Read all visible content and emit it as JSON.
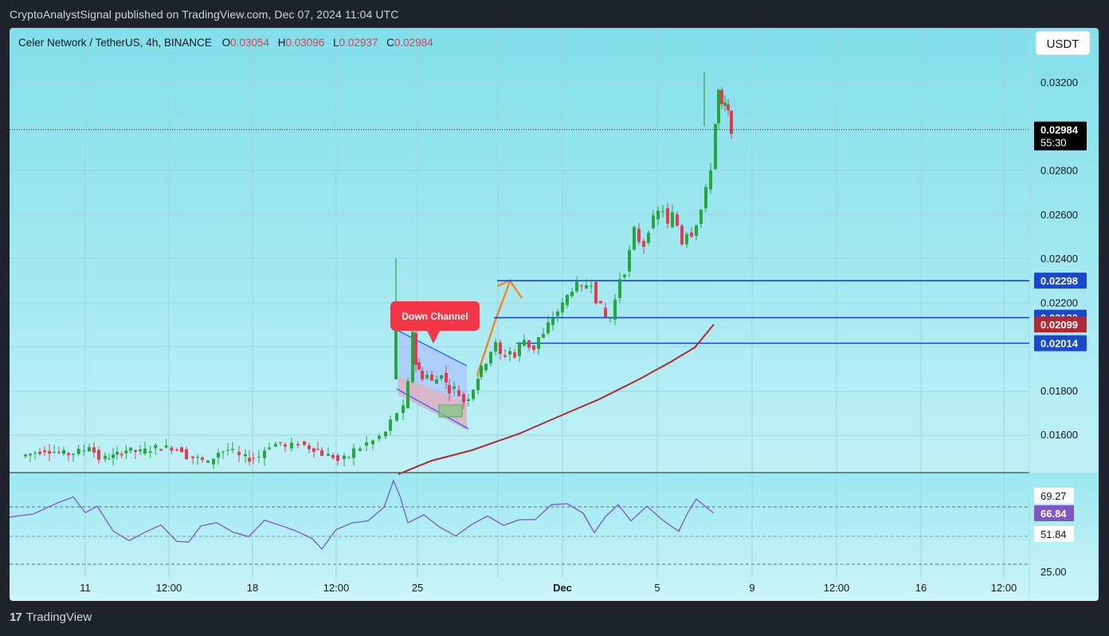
{
  "header": {
    "published": "CryptoAnalystSignal published on TradingView.com, Dec 07, 2024 11:04 UTC"
  },
  "legend": {
    "symbol": "Celer Network / TetherUS, 4h, BINANCE",
    "o_label": "O",
    "o_value": "0.03054",
    "h_label": "H",
    "h_value": "0.03096",
    "l_label": "L",
    "l_value": "0.02937",
    "c_label": "C",
    "c_value": "0.02984"
  },
  "currency_button": "USDT",
  "price_axis": {
    "ticks": [
      "0.03200",
      "0.02800",
      "0.02600",
      "0.02400",
      "0.02200",
      "0.01800",
      "0.01600"
    ],
    "current_price": "0.02984",
    "countdown": "55:30",
    "labels": [
      {
        "value": "0.02298",
        "color": "#1848cc"
      },
      {
        "value": "0.02130",
        "color": "#1848cc"
      },
      {
        "value": "0.02099",
        "color": "#b22833"
      },
      {
        "value": "0.02014",
        "color": "#1848cc"
      }
    ]
  },
  "rsi_axis": {
    "ticks": [
      "69.27",
      "51.84",
      "25.00"
    ],
    "current": "66.84",
    "current_color": "#7e57c2"
  },
  "time_axis": {
    "labels": [
      "11",
      "12:00",
      "18",
      "12:00",
      "25",
      "Dec",
      "5",
      "9",
      "12:00",
      "16",
      "12:00"
    ]
  },
  "annotation": {
    "text": "Down Channel",
    "color": "#f23645"
  },
  "colors": {
    "up": "#26a641",
    "down": "#e53950",
    "ma": "#b22833",
    "level": "#1848cc",
    "rsi": "#7e57c2"
  },
  "chart_data": {
    "type": "candlestick",
    "title": "Celer Network / TetherUS, 4h, BINANCE",
    "xlabel": "",
    "ylabel": "",
    "ylim": [
      0.015,
      0.033
    ],
    "x_ticks": [
      "11",
      "12:00",
      "18",
      "12:00",
      "25",
      "Dec",
      "5",
      "9",
      "12:00",
      "16",
      "12:00"
    ],
    "horizontal_levels": [
      0.02298,
      0.0213,
      0.02014
    ],
    "moving_average_last": 0.02099,
    "close_path": [
      [
        0,
        0.015
      ],
      [
        30,
        0.0153
      ],
      [
        60,
        0.0151
      ],
      [
        80,
        0.0153
      ],
      [
        86,
        0.0155
      ],
      [
        92,
        0.0152
      ],
      [
        100,
        0.0149
      ],
      [
        115,
        0.015
      ],
      [
        132,
        0.0153
      ],
      [
        150,
        0.0152
      ],
      [
        170,
        0.0154
      ],
      [
        190,
        0.0154
      ],
      [
        202,
        0.0153
      ],
      [
        210,
        0.015
      ],
      [
        222,
        0.0149
      ],
      [
        236,
        0.0147
      ],
      [
        248,
        0.0152
      ],
      [
        260,
        0.0153
      ],
      [
        268,
        0.0152
      ],
      [
        276,
        0.015
      ],
      [
        286,
        0.0149
      ],
      [
        300,
        0.015
      ],
      [
        306,
        0.0153
      ],
      [
        314,
        0.0155
      ],
      [
        326,
        0.0156
      ],
      [
        334,
        0.0154
      ],
      [
        342,
        0.0155
      ],
      [
        350,
        0.0156
      ],
      [
        362,
        0.0154
      ],
      [
        372,
        0.0153
      ],
      [
        380,
        0.0151
      ],
      [
        392,
        0.015
      ],
      [
        400,
        0.0148
      ],
      [
        412,
        0.015
      ],
      [
        420,
        0.0153
      ],
      [
        428,
        0.0154
      ],
      [
        436,
        0.0156
      ],
      [
        444,
        0.0157
      ],
      [
        452,
        0.0159
      ],
      [
        458,
        0.0161
      ],
      [
        466,
        0.0166
      ],
      [
        474,
        0.017
      ],
      [
        480,
        0.0172
      ],
      [
        486,
        0.0183
      ],
      [
        490,
        0.0207
      ],
      [
        494,
        0.0192
      ],
      [
        498,
        0.0189
      ],
      [
        504,
        0.0186
      ],
      [
        510,
        0.0187
      ],
      [
        516,
        0.0184
      ],
      [
        522,
        0.0185
      ],
      [
        528,
        0.0188
      ],
      [
        532,
        0.0183
      ],
      [
        538,
        0.018
      ],
      [
        544,
        0.0181
      ],
      [
        550,
        0.0178
      ],
      [
        556,
        0.0175
      ],
      [
        562,
        0.0177
      ],
      [
        568,
        0.0181
      ],
      [
        572,
        0.0186
      ],
      [
        578,
        0.019
      ],
      [
        584,
        0.0193
      ],
      [
        590,
        0.0198
      ],
      [
        596,
        0.0201
      ],
      [
        602,
        0.0196
      ],
      [
        608,
        0.0196
      ],
      [
        614,
        0.0198
      ],
      [
        620,
        0.0195
      ],
      [
        626,
        0.0201
      ],
      [
        632,
        0.0203
      ],
      [
        638,
        0.02
      ],
      [
        644,
        0.0199
      ],
      [
        650,
        0.0204
      ],
      [
        656,
        0.0205
      ],
      [
        662,
        0.021
      ],
      [
        668,
        0.0213
      ],
      [
        674,
        0.0216
      ],
      [
        680,
        0.0219
      ],
      [
        686,
        0.0223
      ],
      [
        692,
        0.0226
      ],
      [
        698,
        0.0228
      ],
      [
        704,
        0.0226
      ],
      [
        710,
        0.0228
      ],
      [
        716,
        0.0229
      ],
      [
        722,
        0.0221
      ],
      [
        728,
        0.0218
      ],
      [
        734,
        0.0213
      ],
      [
        740,
        0.0213
      ],
      [
        746,
        0.0221
      ],
      [
        752,
        0.0231
      ],
      [
        758,
        0.0234
      ],
      [
        764,
        0.0243
      ],
      [
        770,
        0.0253
      ],
      [
        776,
        0.0248
      ],
      [
        782,
        0.0246
      ],
      [
        788,
        0.0253
      ],
      [
        794,
        0.0258
      ],
      [
        800,
        0.0261
      ],
      [
        806,
        0.0262
      ],
      [
        812,
        0.0255
      ],
      [
        818,
        0.026
      ],
      [
        824,
        0.0255
      ],
      [
        830,
        0.0247
      ],
      [
        836,
        0.0252
      ],
      [
        842,
        0.0251
      ],
      [
        848,
        0.0256
      ],
      [
        854,
        0.0262
      ],
      [
        860,
        0.0271
      ],
      [
        866,
        0.0281
      ],
      [
        870,
        0.0301
      ],
      [
        874,
        0.0316
      ],
      [
        878,
        0.0309
      ],
      [
        882,
        0.031
      ],
      [
        886,
        0.0306
      ],
      [
        890,
        0.0298
      ]
    ]
  }
}
